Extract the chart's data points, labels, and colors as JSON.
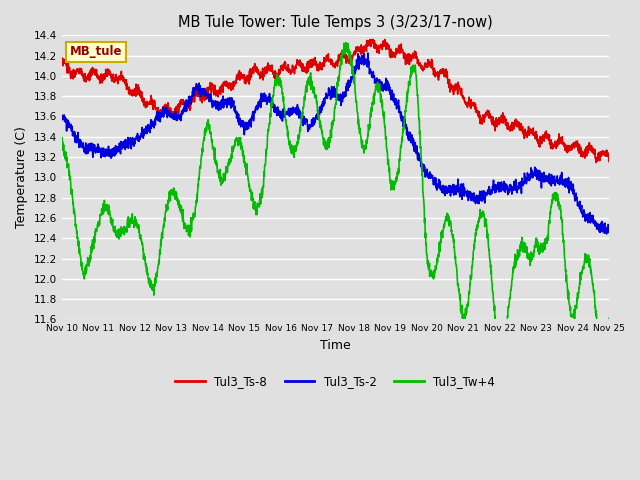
{
  "title": "MB Tule Tower: Tule Temps 3 (3/23/17-now)",
  "xlabel": "Time",
  "ylabel": "Temperature (C)",
  "ylim": [
    11.6,
    14.4
  ],
  "yticks": [
    11.6,
    11.8,
    12.0,
    12.2,
    12.4,
    12.6,
    12.8,
    13.0,
    13.2,
    13.4,
    13.6,
    13.8,
    14.0,
    14.2,
    14.4
  ],
  "xtick_labels": [
    "Nov 10",
    "Nov 11",
    "Nov 12",
    "Nov 13",
    "Nov 14",
    "Nov 15",
    "Nov 16",
    "Nov 17",
    "Nov 18",
    "Nov 19",
    "Nov 20",
    "Nov 21",
    "Nov 22",
    "Nov 23",
    "Nov 24",
    "Nov 25"
  ],
  "bg_color": "#e0e0e0",
  "plot_bg_color": "#e0e0e0",
  "grid_color": "#ffffff",
  "legend_label": "MB_tule",
  "legend_bg": "#ffffcc",
  "legend_border": "#ccaa00",
  "series": [
    {
      "name": "Tul3_Ts-8",
      "color": "#dd0000",
      "lw": 1.2
    },
    {
      "name": "Tul3_Ts-2",
      "color": "#0000dd",
      "lw": 1.2
    },
    {
      "name": "Tul3_Tw+4",
      "color": "#00bb00",
      "lw": 1.2
    }
  ]
}
